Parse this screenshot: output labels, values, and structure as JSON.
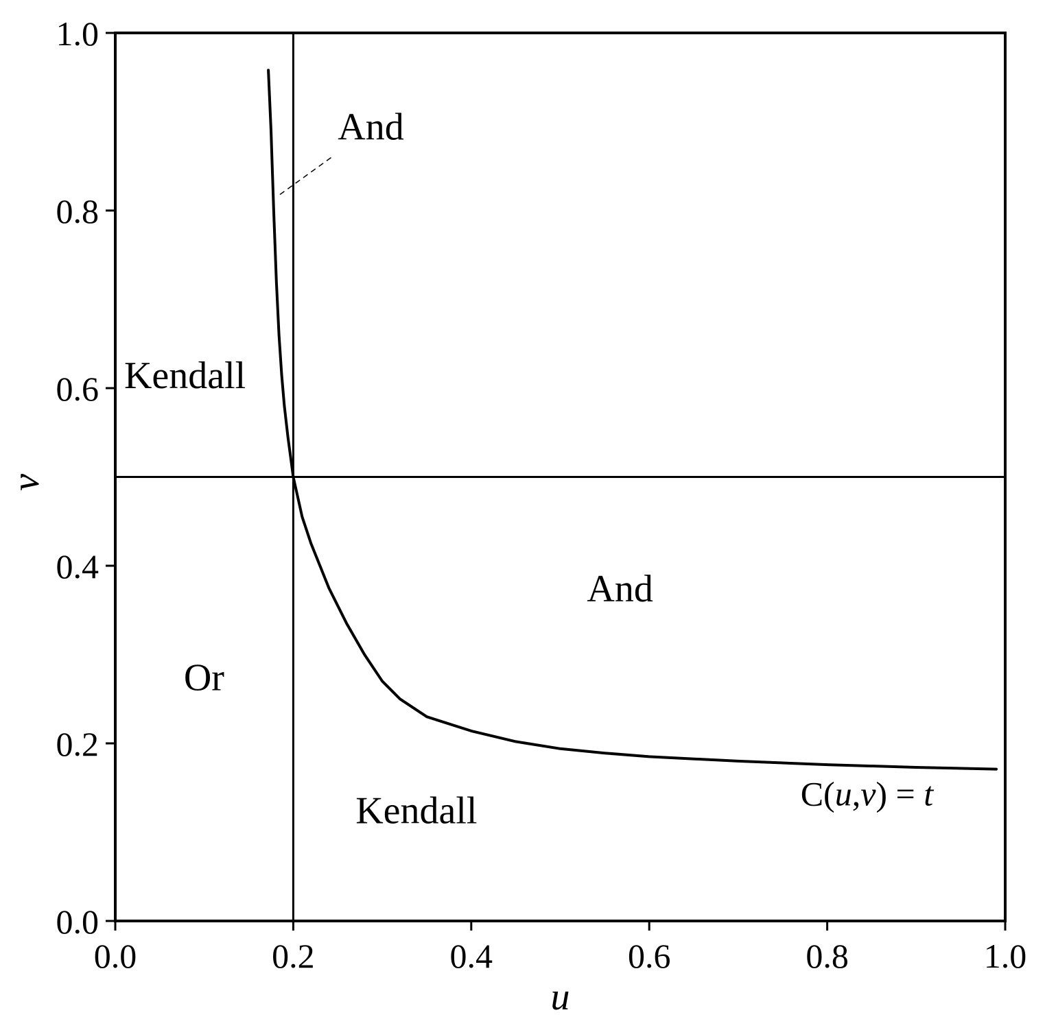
{
  "chart_data": {
    "type": "line",
    "xlabel": "u",
    "ylabel": "v",
    "xlim": [
      0.0,
      1.0
    ],
    "ylim": [
      0.0,
      1.0
    ],
    "x_ticks": [
      "0.0",
      "0.2",
      "0.4",
      "0.6",
      "0.8",
      "1.0"
    ],
    "y_ticks": [
      "0.0",
      "0.2",
      "0.4",
      "0.6",
      "0.8",
      "1.0"
    ],
    "grid": false,
    "reference_lines": {
      "vertical_u": 0.2,
      "horizontal_v": 0.5
    },
    "series": [
      {
        "label": "C(u,v) = t",
        "x": [
          0.172,
          0.175,
          0.178,
          0.181,
          0.184,
          0.187,
          0.19,
          0.194,
          0.2,
          0.21,
          0.22,
          0.24,
          0.26,
          0.28,
          0.3,
          0.32,
          0.35,
          0.4,
          0.45,
          0.5,
          0.55,
          0.6,
          0.7,
          0.8,
          0.9,
          0.99
        ],
        "y": [
          0.958,
          0.89,
          0.8,
          0.72,
          0.66,
          0.615,
          0.58,
          0.545,
          0.5,
          0.455,
          0.425,
          0.375,
          0.335,
          0.3,
          0.27,
          0.25,
          0.23,
          0.214,
          0.202,
          0.194,
          0.189,
          0.185,
          0.18,
          0.176,
          0.173,
          0.171
        ]
      }
    ],
    "annotations": {
      "and_upper": {
        "text": "And",
        "u": 0.25,
        "v": 0.88
      },
      "and_lower": {
        "text": "And",
        "u": 0.53,
        "v": 0.36
      },
      "kendall_upper": {
        "text": "Kendall",
        "u": 0.01,
        "v": 0.6
      },
      "kendall_lower": {
        "text": "Kendall",
        "u": 0.27,
        "v": 0.11
      },
      "or_label": {
        "text": "Or",
        "u": 0.077,
        "v": 0.26
      },
      "curve_label": {
        "text_prefix": "C(",
        "u_var": "u",
        "sep": ",",
        "v_var": "v",
        "text_mid": ") = ",
        "t_var": "t",
        "u": 0.77,
        "v": 0.13
      }
    },
    "leader_line": {
      "from": [
        0.185,
        0.818
      ],
      "to": [
        0.243,
        0.86
      ],
      "style": "dashed"
    }
  }
}
